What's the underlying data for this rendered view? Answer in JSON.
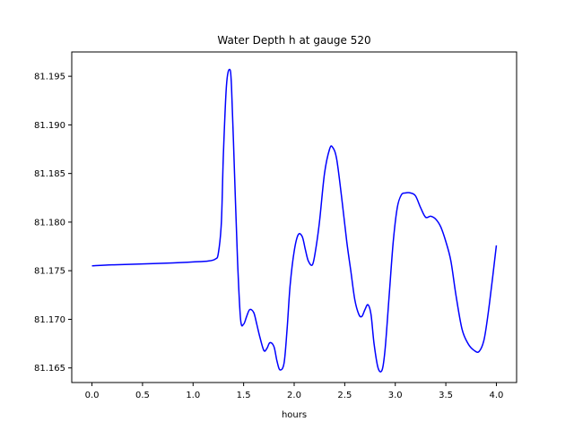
{
  "chart_data": {
    "type": "line",
    "title": "Water Depth h at gauge 520",
    "xlabel": "hours",
    "ylabel": "",
    "xlim": [
      -0.2,
      4.2
    ],
    "ylim": [
      81.1635,
      81.1975
    ],
    "xticks": [
      0.0,
      0.5,
      1.0,
      1.5,
      2.0,
      2.5,
      3.0,
      3.5,
      4.0
    ],
    "xtick_labels": [
      "0.0",
      "0.5",
      "1.0",
      "1.5",
      "2.0",
      "2.5",
      "3.0",
      "3.5",
      "4.0"
    ],
    "yticks": [
      81.165,
      81.17,
      81.175,
      81.18,
      81.185,
      81.19,
      81.195
    ],
    "ytick_labels": [
      "81.165",
      "81.170",
      "81.175",
      "81.180",
      "81.185",
      "81.190",
      "81.195"
    ],
    "grid": false,
    "series": [
      {
        "color": "#0000ff",
        "x": [
          0.0,
          0.2,
          0.5,
          0.8,
          1.0,
          1.15,
          1.22,
          1.25,
          1.28,
          1.3,
          1.33,
          1.36,
          1.38,
          1.41,
          1.44,
          1.47,
          1.5,
          1.53,
          1.56,
          1.6,
          1.63,
          1.66,
          1.7,
          1.73,
          1.76,
          1.8,
          1.83,
          1.86,
          1.9,
          1.93,
          1.96,
          2.0,
          2.04,
          2.08,
          2.11,
          2.14,
          2.18,
          2.21,
          2.25,
          2.3,
          2.35,
          2.38,
          2.42,
          2.47,
          2.52,
          2.56,
          2.6,
          2.64,
          2.67,
          2.7,
          2.73,
          2.76,
          2.79,
          2.83,
          2.87,
          2.9,
          2.94,
          2.98,
          3.02,
          3.06,
          3.1,
          3.15,
          3.2,
          3.25,
          3.3,
          3.35,
          3.4,
          3.45,
          3.5,
          3.55,
          3.6,
          3.66,
          3.72,
          3.78,
          3.83,
          3.88,
          3.93,
          4.0
        ],
        "y": [
          81.1755,
          81.1756,
          81.1757,
          81.1758,
          81.1759,
          81.176,
          81.1762,
          81.1768,
          81.18,
          81.187,
          81.194,
          81.1957,
          81.194,
          81.185,
          81.176,
          81.17,
          81.1695,
          81.1703,
          81.171,
          81.1707,
          81.1695,
          81.1682,
          81.1668,
          81.167,
          81.1676,
          81.1672,
          81.1657,
          81.1648,
          81.1655,
          81.169,
          81.1735,
          81.177,
          81.1787,
          81.1785,
          81.1772,
          81.176,
          81.1756,
          81.177,
          81.18,
          81.185,
          81.1875,
          81.1877,
          81.1865,
          81.1825,
          81.178,
          81.175,
          81.172,
          81.1705,
          81.1703,
          81.171,
          81.1715,
          81.1705,
          81.1675,
          81.165,
          81.1648,
          81.167,
          81.1725,
          81.178,
          81.1815,
          81.1828,
          81.183,
          81.183,
          81.1827,
          81.1815,
          81.1805,
          81.1806,
          81.1803,
          81.1795,
          81.178,
          81.176,
          81.1725,
          81.169,
          81.1675,
          81.1668,
          81.1667,
          81.168,
          81.1715,
          81.1776
        ]
      }
    ]
  }
}
